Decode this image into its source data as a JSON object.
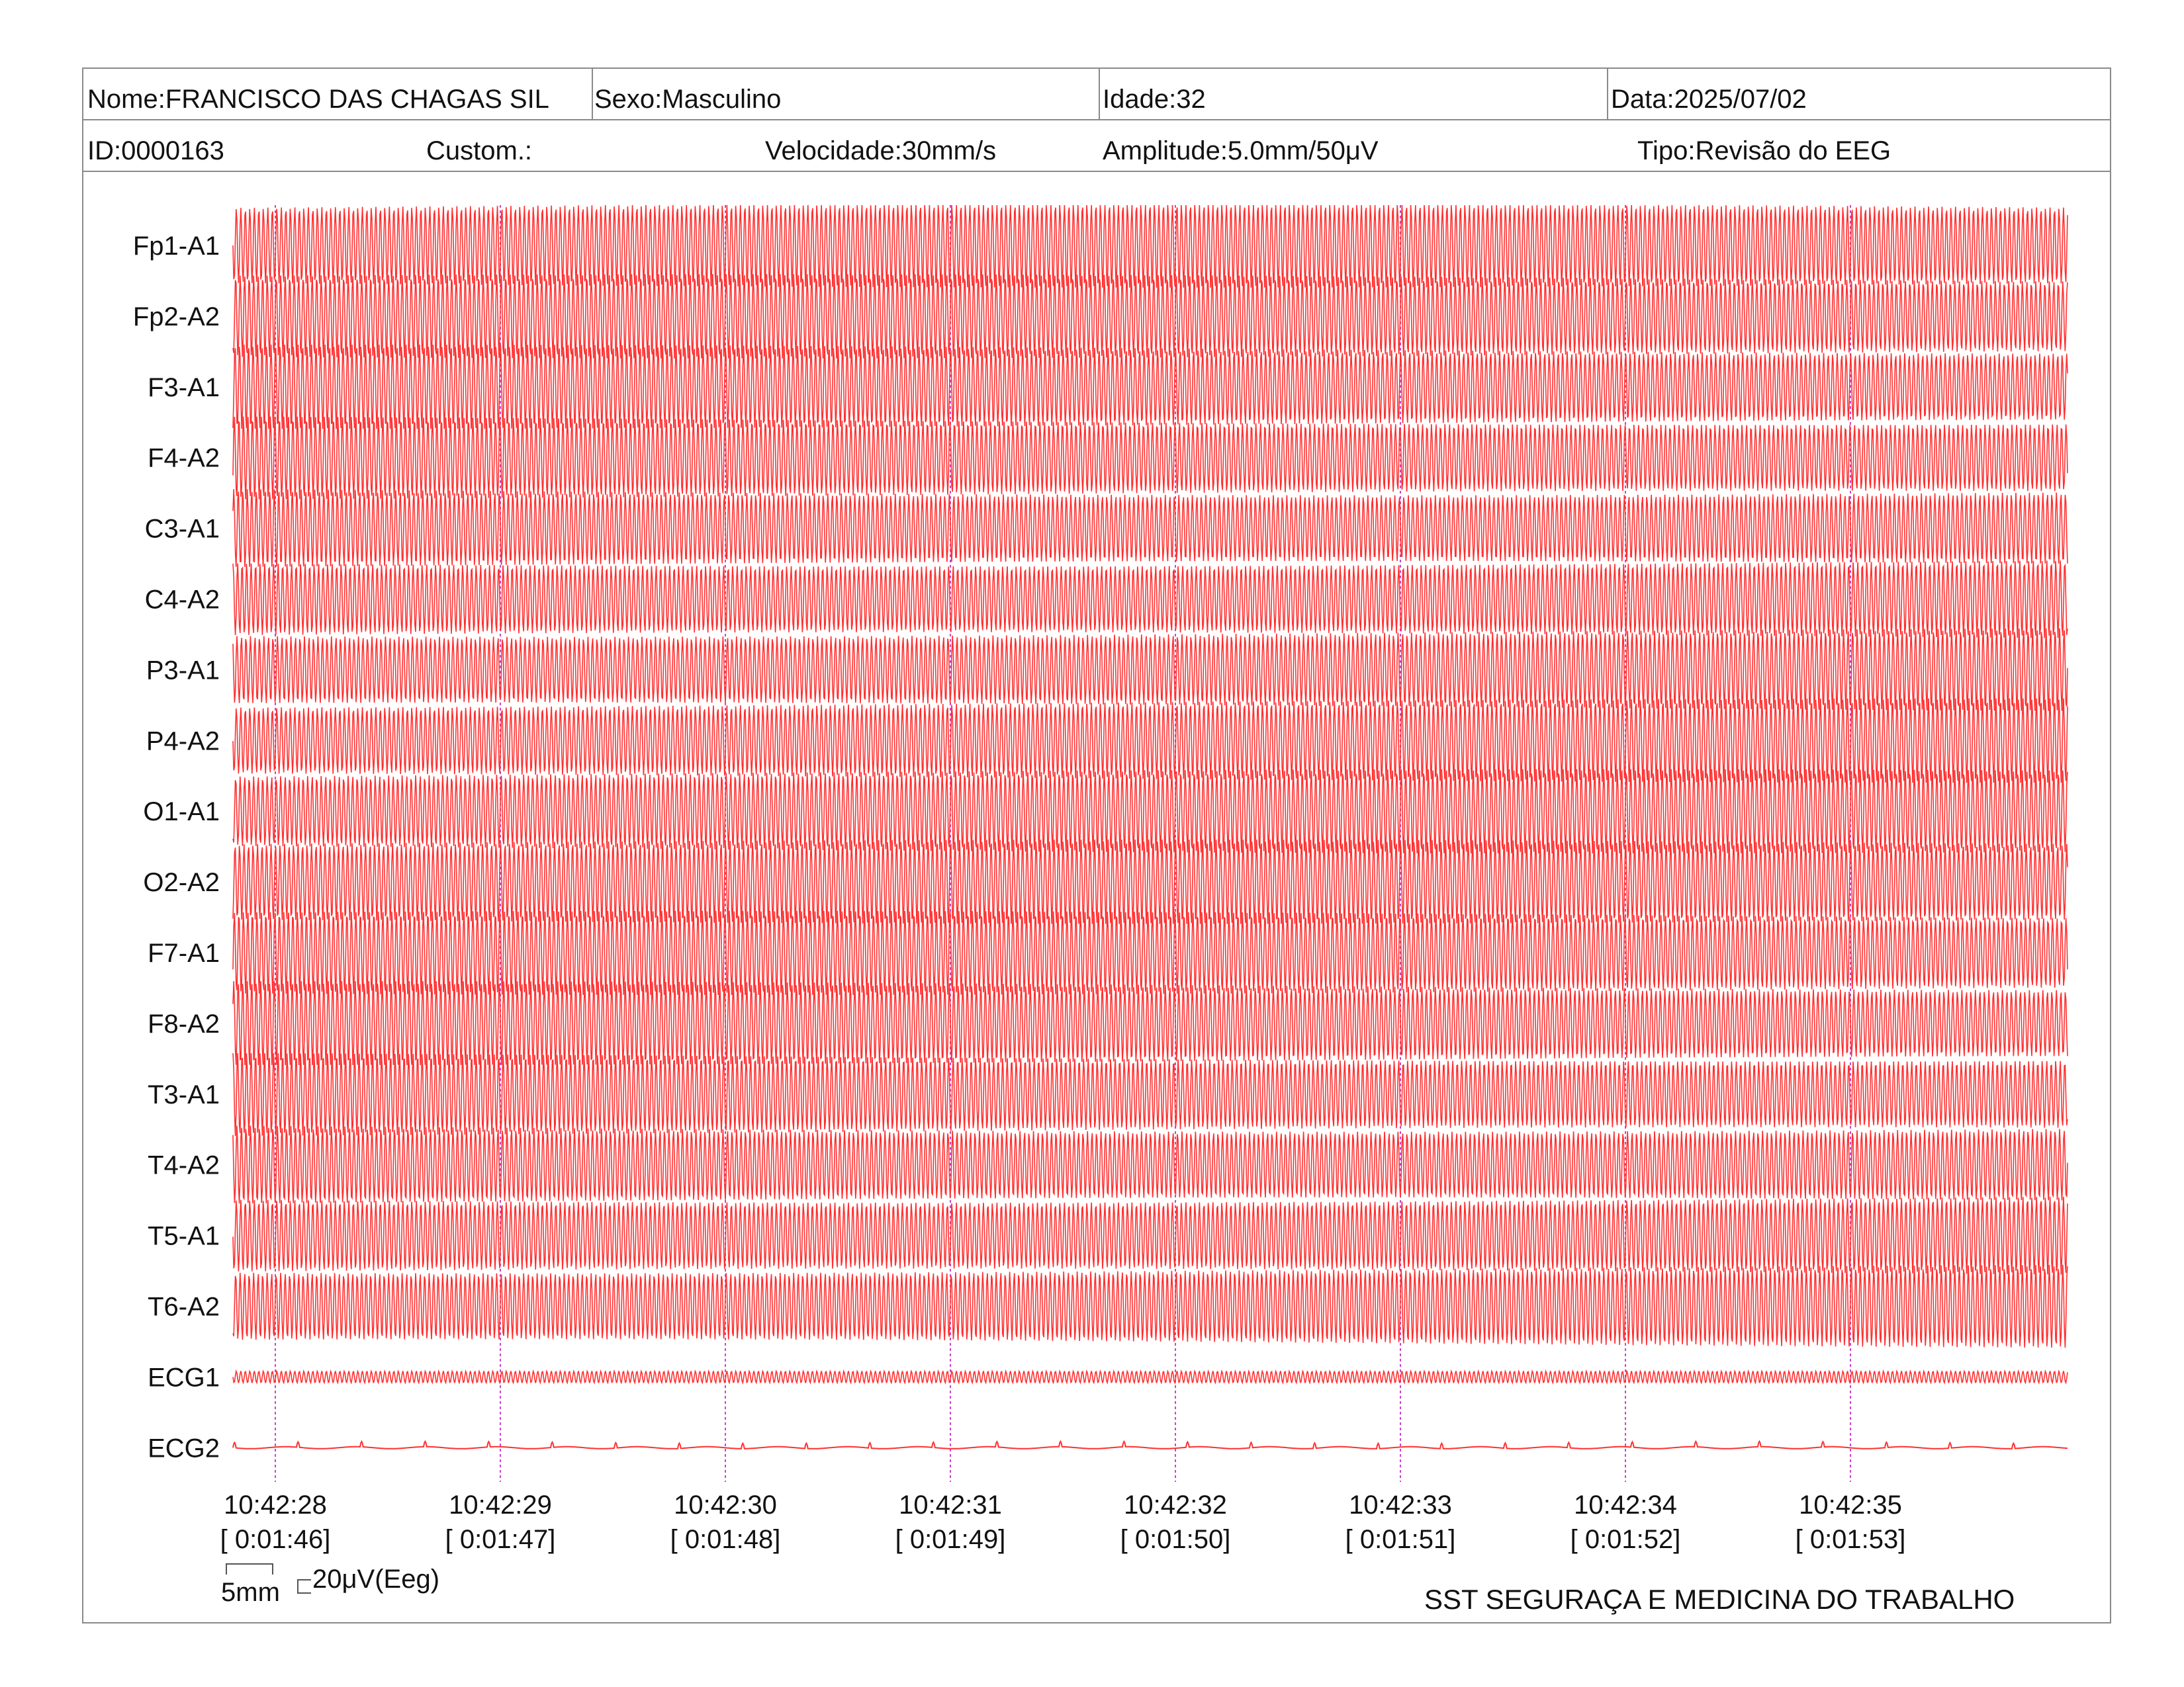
{
  "header": {
    "nome": "Nome:FRANCISCO DAS CHAGAS SIL",
    "sexo": "Sexo:Masculino",
    "idade": "Idade:32",
    "data": "Data:2025/07/02",
    "id": "ID:0000163",
    "custom": "Custom.:",
    "velocidade": "Velocidade:30mm/s",
    "amplitude": "Amplitude:5.0mm/50μV",
    "tipo": "Tipo:Revisão do EEG"
  },
  "chart_data": {
    "type": "line",
    "channels": [
      "Fp1-A1",
      "Fp2-A2",
      "F3-A1",
      "F4-A2",
      "C3-A1",
      "C4-A2",
      "P3-A1",
      "P4-A2",
      "O1-A1",
      "O2-A2",
      "F7-A1",
      "F8-A2",
      "T3-A1",
      "T4-A2",
      "T5-A1",
      "T6-A2",
      "ECG1",
      "ECG2"
    ],
    "time_markers": [
      {
        "time": "10:42:28",
        "elapsed": "[ 0:01:46]"
      },
      {
        "time": "10:42:29",
        "elapsed": "[ 0:01:47]"
      },
      {
        "time": "10:42:30",
        "elapsed": "[ 0:01:48]"
      },
      {
        "time": "10:42:31",
        "elapsed": "[ 0:01:49]"
      },
      {
        "time": "10:42:32",
        "elapsed": "[ 0:01:50]"
      },
      {
        "time": "10:42:33",
        "elapsed": "[ 0:01:51]"
      },
      {
        "time": "10:42:34",
        "elapsed": "[ 0:01:52]"
      },
      {
        "time": "10:42:35",
        "elapsed": "[ 0:01:53]"
      }
    ],
    "scale_time": "5mm",
    "scale_amplitude": "20μV(Eeg)",
    "trace_color": "#ff3030",
    "marker_color": "#cc44cc",
    "eeg_frequency_hz": 50
  },
  "footer": "SST SEGURAÇA E MEDICINA DO TRABALHO"
}
